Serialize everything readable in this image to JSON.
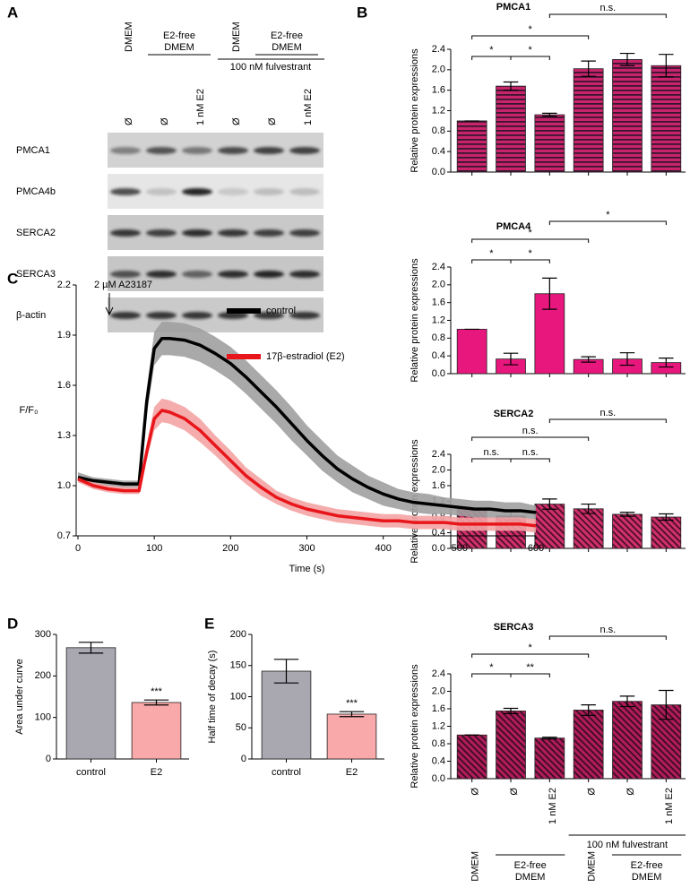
{
  "panel_labels": [
    "A",
    "B",
    "C",
    "D",
    "E"
  ],
  "blot": {
    "treatments": [
      [
        "DMEM"
      ],
      [
        "E2-free",
        "DMEM"
      ],
      [
        "DMEM"
      ],
      [
        "E2-free",
        "DMEM"
      ]
    ],
    "fulvestrant": "100 nM fulvestrant",
    "lanes": [
      "Ø",
      "Ø",
      "1 nM E2",
      "Ø",
      "Ø",
      "1 nM E2"
    ],
    "rows": [
      "PMCA1",
      "PMCA4b",
      "SERCA2",
      "SERCA3",
      "β-actin"
    ]
  },
  "chart_data": [
    {
      "type": "bar",
      "title": "PMCA1",
      "y_label": "Relative protein expressions",
      "categories": [
        null,
        null,
        null,
        null,
        null,
        null
      ],
      "values": [
        1.0,
        1.68,
        1.12,
        2.02,
        2.2,
        2.08
      ],
      "errors": [
        0,
        0.08,
        0.03,
        0.15,
        0.12,
        0.22
      ],
      "color": "#c8246c",
      "stripe_color": "#3a1530",
      "pattern": "horizontal",
      "ylim": [
        0,
        2.4
      ],
      "yticks": [
        {
          "value": 0,
          "label": "0.0"
        },
        0.4,
        0.8,
        1.2,
        1.6,
        {
          "value": 2,
          "label": "2.0"
        },
        2.4
      ],
      "annotations": [
        "*",
        "*",
        "*",
        "n.s."
      ]
    },
    {
      "type": "bar",
      "title": "PMCA4",
      "y_label": "Relative protein expressions",
      "categories": [
        null,
        null,
        null,
        null,
        null,
        null
      ],
      "values": [
        1.0,
        0.33,
        1.8,
        0.32,
        0.33,
        0.25
      ],
      "errors": [
        0,
        0.13,
        0.35,
        0.06,
        0.14,
        0.1
      ],
      "color": "#e8177d",
      "pattern": "solid",
      "ylim": [
        0,
        2.4
      ],
      "yticks": [
        {
          "value": 0,
          "label": "0.0"
        },
        0.4,
        0.8,
        1.2,
        1.6,
        {
          "value": 2,
          "label": "2.0"
        },
        2.4
      ],
      "annotations": [
        "*",
        "*",
        "*",
        "*"
      ]
    },
    {
      "type": "bar",
      "title": "SERCA2",
      "y_label": "Relative protein expressions",
      "categories": [
        null,
        null,
        null,
        null,
        null,
        null
      ],
      "values": [
        1.0,
        0.83,
        1.13,
        1.01,
        0.87,
        0.8
      ],
      "errors": [
        0,
        0.1,
        0.13,
        0.12,
        0.05,
        0.08
      ],
      "color": "#d0306a",
      "stripe_color": "#4a0f2a",
      "pattern": "diagonal",
      "ylim": [
        0,
        2.4
      ],
      "yticks": [
        {
          "value": 0,
          "label": "0.0"
        },
        0.4,
        0.8,
        1.2,
        1.6,
        {
          "value": 2,
          "label": "2.0"
        },
        2.4
      ],
      "annotations": [
        "n.s.",
        "n.s.",
        "n.s.",
        "n.s."
      ]
    },
    {
      "type": "bar",
      "title": "SERCA3",
      "y_label": "Relative protein expressions",
      "categories": [
        "Ø",
        "Ø",
        "1 nM E2",
        "Ø",
        "Ø",
        "1 nM E2"
      ],
      "values": [
        1.0,
        1.55,
        0.93,
        1.57,
        1.77,
        1.69
      ],
      "errors": [
        0,
        0.06,
        0.02,
        0.12,
        0.12,
        0.33
      ],
      "color": "#b01c5a",
      "stripe_color": "#3a0c22",
      "pattern": "diagonal",
      "ylim": [
        0,
        2.4
      ],
      "yticks": [
        {
          "value": 0,
          "label": "0.0"
        },
        0.4,
        0.8,
        1.2,
        1.6,
        {
          "value": 2,
          "label": "2.0"
        },
        2.4
      ],
      "annotations": [
        "*",
        "**",
        "*",
        "n.s."
      ],
      "group_labels": {
        "treatments": [
          [
            "DMEM"
          ],
          [
            "E2-free",
            "DMEM"
          ],
          [
            "DMEM"
          ],
          [
            "E2-free",
            "DMEM"
          ]
        ],
        "fulvestrant": "100 nM fulvestrant"
      }
    },
    {
      "type": "line",
      "x_label": "Time (s)",
      "y_label": "F/F₀",
      "annotation": "2 µM A23187",
      "x": [
        0,
        20,
        40,
        60,
        80,
        90,
        100,
        110,
        120,
        140,
        160,
        180,
        200,
        220,
        240,
        260,
        280,
        300,
        320,
        340,
        360,
        380,
        400,
        420,
        440,
        460,
        480,
        500,
        520,
        540,
        560,
        580,
        600
      ],
      "series": [
        {
          "name": "control",
          "color": "#000000",
          "band_color": "#a0a0a0",
          "values": [
            1.05,
            1.03,
            1.02,
            1.01,
            1.01,
            1.5,
            1.82,
            1.88,
            1.88,
            1.87,
            1.84,
            1.79,
            1.73,
            1.65,
            1.56,
            1.47,
            1.37,
            1.27,
            1.18,
            1.1,
            1.04,
            0.99,
            0.95,
            0.92,
            0.9,
            0.89,
            0.88,
            0.87,
            0.86,
            0.86,
            0.85,
            0.85,
            0.84
          ],
          "errors": [
            0.03,
            0.02,
            0.02,
            0.02,
            0.02,
            0.08,
            0.1,
            0.1,
            0.1,
            0.1,
            0.1,
            0.1,
            0.1,
            0.1,
            0.1,
            0.1,
            0.1,
            0.09,
            0.09,
            0.08,
            0.08,
            0.07,
            0.07,
            0.06,
            0.06,
            0.06,
            0.05,
            0.05,
            0.05,
            0.05,
            0.05,
            0.05,
            0.04
          ]
        },
        {
          "name": "17β-estradiol (E2)",
          "color": "#e8161b",
          "band_color": "#f4a3a3",
          "values": [
            1.04,
            1.0,
            0.98,
            0.97,
            0.97,
            1.2,
            1.4,
            1.45,
            1.44,
            1.4,
            1.33,
            1.24,
            1.15,
            1.06,
            0.99,
            0.93,
            0.89,
            0.86,
            0.84,
            0.82,
            0.81,
            0.8,
            0.79,
            0.79,
            0.78,
            0.78,
            0.78,
            0.77,
            0.77,
            0.77,
            0.77,
            0.77,
            0.76
          ],
          "errors": [
            0.02,
            0.02,
            0.02,
            0.02,
            0.02,
            0.05,
            0.07,
            0.07,
            0.07,
            0.07,
            0.07,
            0.06,
            0.06,
            0.05,
            0.05,
            0.04,
            0.04,
            0.04,
            0.04,
            0.04,
            0.04,
            0.04,
            0.04,
            0.04,
            0.04,
            0.04,
            0.04,
            0.04,
            0.04,
            0.04,
            0.04,
            0.04,
            0.04
          ]
        }
      ],
      "xlim": [
        0,
        600
      ],
      "xticks": [
        0,
        100,
        200,
        300,
        400,
        500,
        600
      ],
      "ylim": [
        0.7,
        2.2
      ],
      "yticks": [
        0.7,
        {
          "value": 1,
          "label": "1.0"
        },
        1.3,
        1.6,
        1.9,
        2.2
      ]
    },
    {
      "type": "bar",
      "y_label": "Area under curve",
      "categories": [
        "control",
        "E2"
      ],
      "values": [
        268,
        136
      ],
      "errors": [
        13,
        6
      ],
      "colors": [
        "#a9a7b0",
        "#f9a9a9"
      ],
      "ylim": [
        0,
        300
      ],
      "yticks": [
        0,
        100,
        200,
        300
      ],
      "annotations": [
        "***"
      ]
    },
    {
      "type": "bar",
      "y_label": "Half time of decay (s)",
      "categories": [
        "control",
        "E2"
      ],
      "values": [
        141,
        72
      ],
      "errors": [
        19,
        4
      ],
      "colors": [
        "#a9a7b0",
        "#f9a9a9"
      ],
      "ylim": [
        0,
        200
      ],
      "yticks": [
        0,
        50,
        100,
        150,
        200
      ],
      "annotations": [
        "***"
      ]
    }
  ]
}
